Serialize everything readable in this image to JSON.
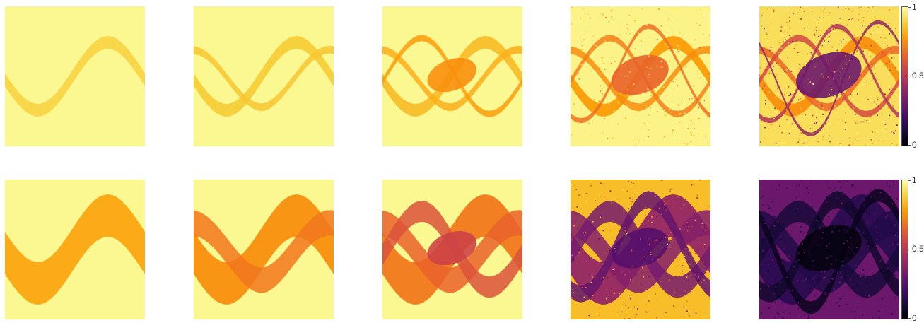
{
  "figure": {
    "colormap": "inferno",
    "colormap_stops": [
      "#000004",
      "#1b0c41",
      "#4a0c6b",
      "#781c6d",
      "#a52c60",
      "#cf4446",
      "#ed6925",
      "#fb9b06",
      "#f7d13d",
      "#fcffa4"
    ],
    "background_color": "#fcfba4"
  },
  "chart_data": [
    {
      "type": "heatmap",
      "panel_grid": {
        "rows": 2,
        "columns": 5
      },
      "value_range": [
        0,
        1
      ],
      "colorbars": [
        {
          "row": 1,
          "ticks": [
            "0",
            "0.5",
            "1"
          ],
          "tick_values": [
            0,
            0.5,
            1
          ]
        },
        {
          "row": 2,
          "ticks": [
            "0",
            "0.5",
            "1"
          ],
          "tick_values": [
            0,
            0.5,
            1
          ]
        }
      ],
      "panels": [
        {
          "row": 1,
          "col": 1,
          "background_value": 0.98,
          "structure_value": 0.9,
          "min_value": 0.9
        },
        {
          "row": 1,
          "col": 2,
          "background_value": 0.98,
          "structure_value": 0.88,
          "min_value": 0.85
        },
        {
          "row": 1,
          "col": 3,
          "background_value": 0.98,
          "structure_value": 0.85,
          "min_value": 0.75
        },
        {
          "row": 1,
          "col": 4,
          "background_value": 0.97,
          "structure_value": 0.78,
          "min_value": 0.65
        },
        {
          "row": 1,
          "col": 5,
          "background_value": 0.92,
          "structure_value": 0.75,
          "min_value": 0.3
        },
        {
          "row": 2,
          "col": 1,
          "background_value": 0.98,
          "structure_value": 0.8,
          "min_value": 0.78
        },
        {
          "row": 2,
          "col": 2,
          "background_value": 0.98,
          "structure_value": 0.75,
          "min_value": 0.65
        },
        {
          "row": 2,
          "col": 3,
          "background_value": 0.98,
          "structure_value": 0.7,
          "min_value": 0.55
        },
        {
          "row": 2,
          "col": 4,
          "background_value": 0.85,
          "structure_value": 0.4,
          "min_value": 0.25
        },
        {
          "row": 2,
          "col": 5,
          "background_value": 0.3,
          "structure_value": 0.15,
          "min_value": 0.02
        }
      ]
    }
  ]
}
